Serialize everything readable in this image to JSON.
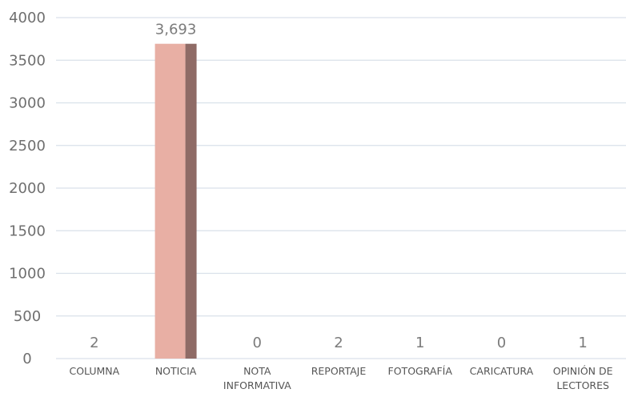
{
  "chart_data": {
    "type": "bar",
    "categories": [
      "COLUMNA",
      "NOTICIA",
      "NOTA INFORMATIVA",
      "REPORTAJE",
      "FOTOGRAFÍA",
      "CARICATURA",
      "OPINIÓN DE LECTORES"
    ],
    "category_lines": [
      [
        "COLUMNA"
      ],
      [
        "NOTICIA"
      ],
      [
        "NOTA",
        "INFORMATIVA"
      ],
      [
        "REPORTAJE"
      ],
      [
        "FOTOGRAFÍA"
      ],
      [
        "CARICATURA"
      ],
      [
        "OPINIÓN DE",
        "LECTORES"
      ]
    ],
    "values": [
      2,
      3693,
      0,
      2,
      1,
      0,
      1
    ],
    "data_labels": [
      "2",
      "3,693",
      "0",
      "2",
      "1",
      "0",
      "1"
    ],
    "title": "",
    "xlabel": "",
    "ylabel": "",
    "ylim": [
      0,
      4000
    ],
    "yticks": [
      0,
      500,
      1000,
      1500,
      2000,
      2500,
      3000,
      3500,
      4000
    ],
    "grid": true,
    "colors": {
      "bar_main": "#e8afa4",
      "bar_shade": "#8f6b66",
      "grid": "#d9e1ea",
      "axis_text": "#6f6f6f",
      "label_text": "#555555"
    }
  }
}
